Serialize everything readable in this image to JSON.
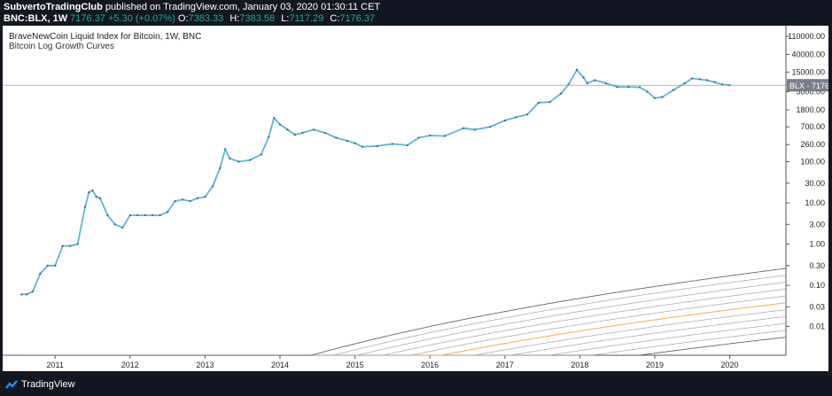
{
  "header": {
    "publisher": "SubvertoTradingClub",
    "published_text": "published on TradingView.com, January 03, 2020 01:30:11 CET",
    "symbol": "BNC:BLX, 1W",
    "last": "7176.37",
    "change": "+5.30 (+0.07%)",
    "ohlc": [
      {
        "k": "O:",
        "v": "7383.33"
      },
      {
        "k": "H:",
        "v": "7383.58"
      },
      {
        "k": "L:",
        "v": "7117.29"
      },
      {
        "k": "C:",
        "v": "7176.37"
      }
    ]
  },
  "footer": {
    "brand": "TradingView"
  },
  "chart_data": {
    "type": "line",
    "title": "BraveNewCoin Liquid Index for Bitcoin, 1W, BNC",
    "subtitle": "Bitcoin Log Growth Curves",
    "y_scale": "log",
    "ylim": [
      0.002,
      200000
    ],
    "xlim": [
      2010.3,
      2020.75
    ],
    "y_ticks": [
      0.01,
      0.03,
      0.1,
      0.3,
      1,
      3,
      10,
      30,
      100,
      260,
      700,
      1800,
      5000,
      15000,
      40000,
      110000
    ],
    "y_tick_labels": [
      "0.01",
      "0.03",
      "0.10",
      "0.30",
      "1.00",
      "3.00",
      "10.00",
      "30.00",
      "100.00",
      "260.00",
      "700.00",
      "1800.00",
      "5000.00",
      "15000.00",
      "40000.00",
      "110000.00"
    ],
    "x_ticks": [
      2011,
      2012,
      2013,
      2014,
      2015,
      2016,
      2017,
      2018,
      2019,
      2020
    ],
    "x_tick_labels": [
      "2011",
      "2012",
      "2013",
      "2014",
      "2015",
      "2016",
      "2017",
      "2018",
      "2019",
      "2020"
    ],
    "series": [
      {
        "color": "#5ab6d8",
        "x": [
          2010.55,
          2010.62,
          2010.7,
          2010.8,
          2010.9,
          2011.0,
          2011.1,
          2011.2,
          2011.3,
          2011.4,
          2011.45,
          2011.5,
          2011.55,
          2011.6,
          2011.7,
          2011.8,
          2011.9,
          2012.0,
          2012.1,
          2012.2,
          2012.3,
          2012.4,
          2012.5,
          2012.6,
          2012.7,
          2012.8,
          2012.9,
          2013.0,
          2013.1,
          2013.2,
          2013.27,
          2013.33,
          2013.45,
          2013.6,
          2013.75,
          2013.85,
          2013.92,
          2014.0,
          2014.1,
          2014.2,
          2014.3,
          2014.45,
          2014.6,
          2014.75,
          2014.9,
          2015.0,
          2015.1,
          2015.3,
          2015.5,
          2015.7,
          2015.85,
          2016.0,
          2016.2,
          2016.45,
          2016.6,
          2016.8,
          2017.0,
          2017.15,
          2017.3,
          2017.45,
          2017.6,
          2017.75,
          2017.85,
          2017.96,
          2018.05,
          2018.1,
          2018.2,
          2018.35,
          2018.5,
          2018.65,
          2018.8,
          2018.9,
          2019.0,
          2019.1,
          2019.25,
          2019.4,
          2019.5,
          2019.6,
          2019.7,
          2019.8,
          2019.9,
          2020.0
        ],
        "values": [
          0.06,
          0.06,
          0.07,
          0.19,
          0.3,
          0.3,
          0.9,
          0.9,
          1.0,
          8.0,
          18.0,
          20.0,
          14.0,
          13.0,
          5.0,
          3.0,
          2.5,
          5.0,
          5.0,
          5.0,
          5.0,
          5.0,
          6.0,
          11.0,
          12.0,
          11.0,
          13.0,
          14.0,
          25.0,
          70.0,
          200.0,
          120.0,
          100.0,
          110.0,
          150.0,
          400.0,
          1150.0,
          800.0,
          600.0,
          450.0,
          500.0,
          600.0,
          500.0,
          380.0,
          320.0,
          280.0,
          230.0,
          240.0,
          270.0,
          250.0,
          380.0,
          430.0,
          420.0,
          650.0,
          600.0,
          700.0,
          1000.0,
          1200.0,
          1400.0,
          2700.0,
          2800.0,
          4500.0,
          7500.0,
          17000.0,
          11000.0,
          8000.0,
          9500.0,
          8000.0,
          6500.0,
          6500.0,
          6400.0,
          5000.0,
          3500.0,
          3700.0,
          5500.0,
          8000.0,
          10500.0,
          10000.0,
          9500.0,
          8500.0,
          7500.0,
          7176.37
        ]
      }
    ],
    "last_price_label": {
      "symbol": "BLX",
      "value": "7176.37"
    }
  }
}
